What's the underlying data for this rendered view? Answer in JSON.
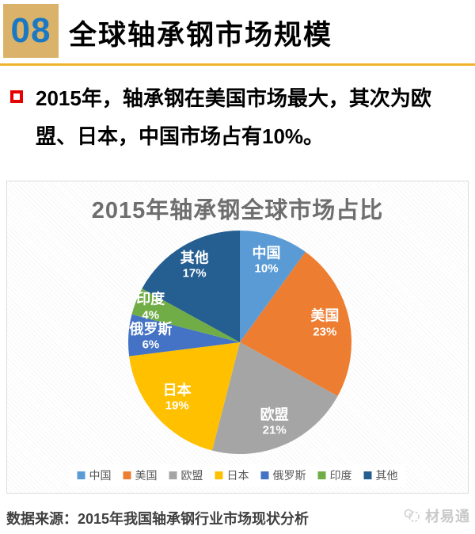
{
  "header": {
    "number": "08",
    "number_color": "#1B79C4",
    "box_color": "#DBB269",
    "title": "全球轴承钢市场规模",
    "rule_color": "#F0B32C"
  },
  "bullet": {
    "marker_color": "#E60000",
    "text": "2015年，轴承钢在美国市场最大，其次为欧盟、日本，中国市场占有10%。"
  },
  "chart_data": {
    "type": "pie",
    "title": "2015年轴承钢全球市场占比",
    "title_color": "#6E6E6E",
    "start_angle_deg": 0,
    "direction": "clockwise",
    "categories": [
      "中国",
      "美国",
      "欧盟",
      "日本",
      "俄罗斯",
      "印度",
      "其他"
    ],
    "values": [
      10,
      23,
      21,
      19,
      6,
      4,
      17
    ],
    "slices": [
      {
        "label": "中国",
        "value": 10,
        "pct_label": "10%",
        "color": "#5B9BD5",
        "label_r": 0.77
      },
      {
        "label": "美国",
        "value": 23,
        "pct_label": "23%",
        "color": "#ED7D31",
        "label_r": 0.78
      },
      {
        "label": "欧盟",
        "value": 21,
        "pct_label": "21%",
        "color": "#A5A5A5",
        "label_r": 0.78
      },
      {
        "label": "日本",
        "value": 19,
        "pct_label": "19%",
        "color": "#FFC000",
        "label_r": 0.75
      },
      {
        "label": "俄罗斯",
        "value": 6,
        "pct_label": "6%",
        "color": "#4472C4",
        "label_r": 0.8
      },
      {
        "label": "印度",
        "value": 4,
        "pct_label": "4%",
        "color": "#70AD47",
        "label_r": 0.86
      },
      {
        "label": "其他",
        "value": 17,
        "pct_label": "17%",
        "color": "#255E91",
        "label_r": 0.8
      }
    ],
    "label_text_color": "#ffffff",
    "legend_position": "bottom",
    "legend_text_color": "#595959"
  },
  "footer": {
    "source": "数据来源：2015年我国轴承钢行业市场现状分析",
    "watermark": "材易通"
  }
}
